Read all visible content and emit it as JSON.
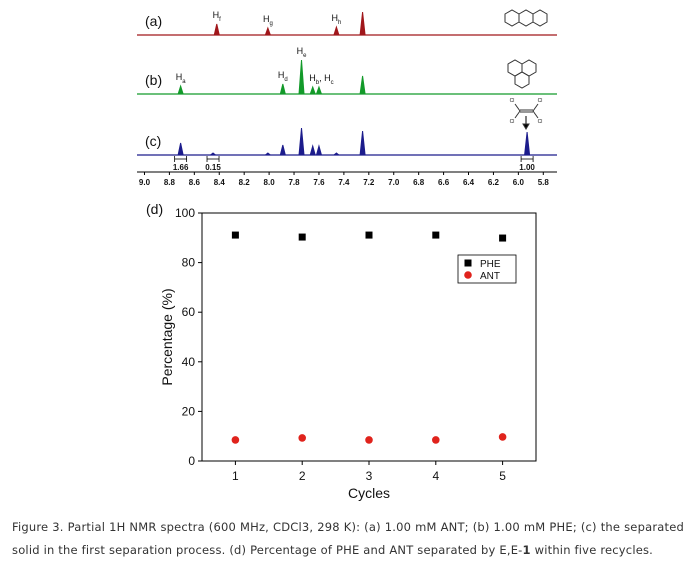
{
  "chart_data": [
    {
      "type": "nmr",
      "xlim": [
        9.06,
        5.69
      ],
      "xticks": [
        {
          "value": 9,
          "label": "9.0"
        },
        8.8,
        8.6,
        8.4,
        8.2,
        {
          "value": 8,
          "label": "8.0"
        },
        7.8,
        7.6,
        7.4,
        7.2,
        {
          "value": 7,
          "label": "7.0"
        },
        6.8,
        6.6,
        6.4,
        6.2,
        {
          "value": 6,
          "label": "6.0"
        },
        5.8
      ],
      "ylim": [
        0,
        40
      ],
      "series": [
        {
          "name": "(a)",
          "color": "#a0171b",
          "x": [
            8.42,
            8.01,
            7.46,
            7.25
          ],
          "values": [
            11,
            7,
            8,
            23
          ],
          "peak_labels": [
            {
              "x": 8.42,
              "text": [
                "H",
                "f"
              ]
            },
            {
              "x": 8.01,
              "text": [
                "H",
                "g"
              ]
            },
            {
              "x": 7.46,
              "text": [
                "H",
                "h"
              ]
            }
          ]
        },
        {
          "name": "(b)",
          "color": "#139a2a",
          "x": [
            8.71,
            7.89,
            7.74,
            7.65,
            7.6,
            7.25
          ],
          "values": [
            8,
            10,
            34,
            7,
            7,
            18
          ],
          "peak_labels": [
            {
              "x": 8.71,
              "text": [
                "H",
                "a"
              ]
            },
            {
              "x": 7.89,
              "text": [
                "H",
                "d"
              ]
            },
            {
              "x": 7.74,
              "text": [
                "H",
                "e"
              ]
            },
            {
              "x": 7.58,
              "text": [
                "H",
                "b",
                ", H",
                "c"
              ]
            }
          ]
        },
        {
          "name": "(c)",
          "color": "#1c1c8c",
          "x": [
            8.71,
            8.45,
            8.01,
            7.89,
            7.74,
            7.65,
            7.6,
            7.46,
            7.25,
            5.93
          ],
          "values": [
            12,
            2,
            2,
            10,
            27,
            9,
            9,
            2,
            24,
            23
          ],
          "integrals": [
            {
              "x": 8.71,
              "value": 1.66
            },
            {
              "x": 8.45,
              "value": 0.15
            },
            {
              "x": 5.93,
              "value": 1,
              "label": "1.00"
            }
          ]
        }
      ],
      "annotations": [
        "Cl",
        "Cl",
        "Cl",
        "Cl"
      ]
    },
    {
      "type": "scatter",
      "title": "(d)",
      "x_label": "Cycles",
      "y_label": "Percentage (%)",
      "xlim": [
        0.5,
        5.5
      ],
      "xticks": [
        1,
        2,
        3,
        4,
        5
      ],
      "ylim": [
        0,
        100
      ],
      "yticks": [
        0,
        20,
        40,
        60,
        80,
        100
      ],
      "legend": "upper right",
      "series": [
        {
          "name": "PHE",
          "color": "#000000",
          "marker": "square",
          "x": [
            1,
            2,
            3,
            4,
            5
          ],
          "values": [
            91.1,
            90.3,
            91.1,
            91.1,
            89.9
          ]
        },
        {
          "name": "ANT",
          "color": "#e0231c",
          "marker": "circle",
          "x": [
            1,
            2,
            3,
            4,
            5
          ],
          "values": [
            8.5,
            9.3,
            8.5,
            8.5,
            9.7
          ]
        }
      ]
    }
  ],
  "caption": [
    "Figure 3. Partial 1H NMR spectra (600 MHz, CDCl3, 298 K): (a) 1.00 mM ANT; (b) 1.00 mM PHE; (c) the separated solid in the first separation process. (d) Percentage of PHE and ANT separated by E,E-",
    "1",
    " within five recycles."
  ]
}
